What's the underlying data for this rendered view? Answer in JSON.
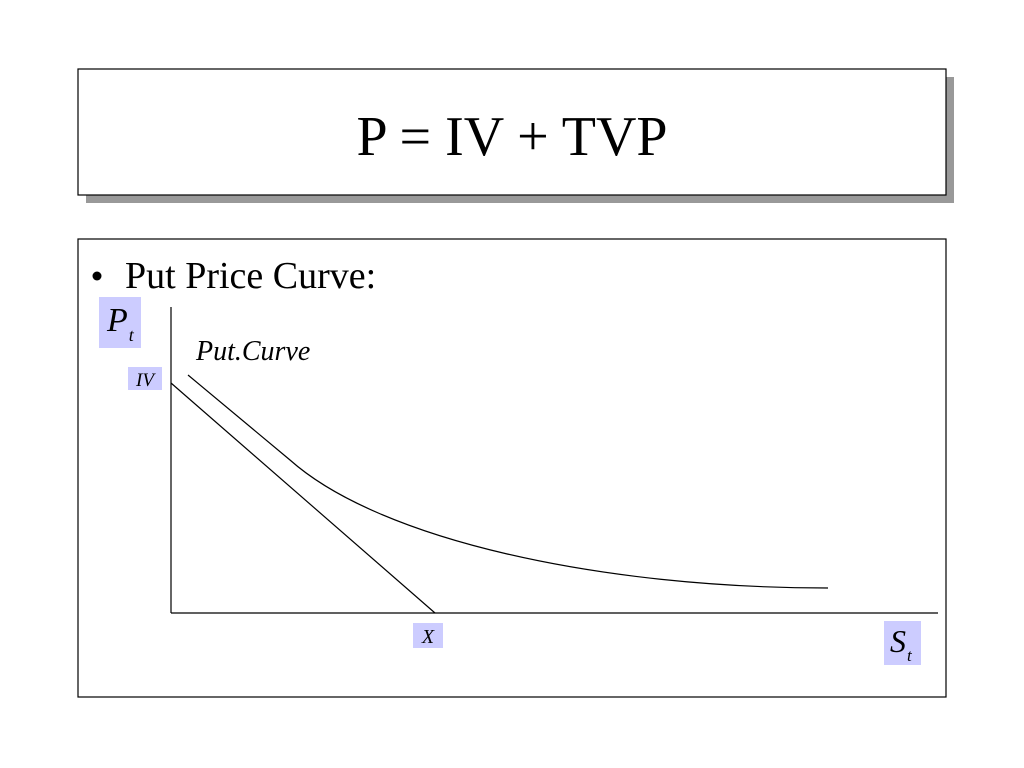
{
  "title": "P = IV + TVP",
  "bullet": "Put Price Curve:",
  "diagram": {
    "y_axis_label": {
      "main": "P",
      "sub": "t"
    },
    "iv_label": "IV",
    "curve_label": "Put.Curve",
    "x_label": "X",
    "x_axis_label": {
      "main": "S",
      "sub": "t"
    }
  }
}
